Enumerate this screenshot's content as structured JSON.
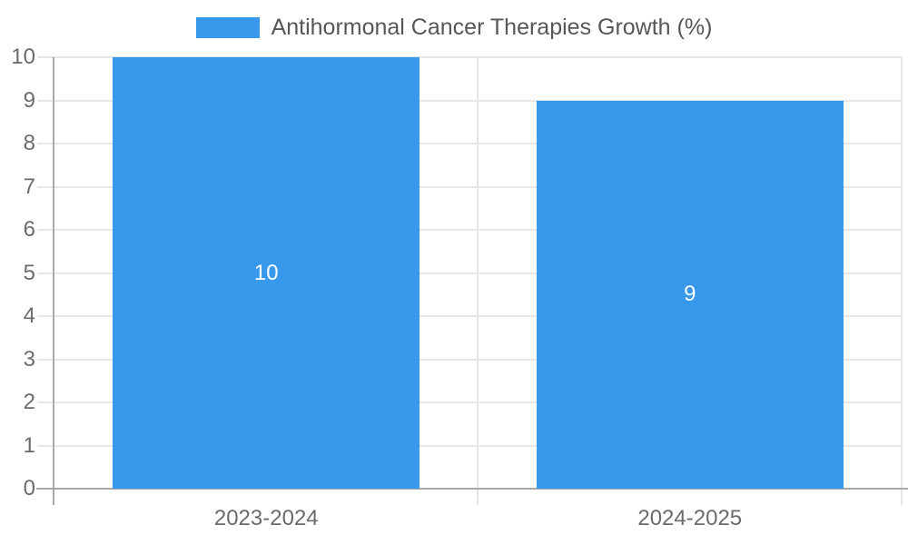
{
  "chart_data": {
    "type": "bar",
    "title": "Antihormonal Cancer Therapies Growth (%)",
    "legend": {
      "position": "top-center",
      "entries": [
        {
          "label": "Antihormonal Cancer Therapies Growth (%)",
          "color": "#3899EC"
        }
      ]
    },
    "categories": [
      "2023-2024",
      "2024-2025"
    ],
    "series": [
      {
        "name": "Antihormonal Cancer Therapies Growth (%)",
        "values": [
          10,
          9
        ],
        "color": "#3899EC"
      }
    ],
    "bar_value_labels": [
      "10",
      "9"
    ],
    "xlabel": "",
    "ylabel": "",
    "ylim": [
      0,
      10
    ],
    "ytick_step": 1,
    "yticks": [
      0,
      1,
      2,
      3,
      4,
      5,
      6,
      7,
      8,
      9,
      10
    ],
    "grid": true,
    "colors": {
      "bar": "#3899EC",
      "gridline": "#e6e6e6",
      "axis_line": "#a9a9a9",
      "tick_label_text": "#6b6b6b",
      "legend_text": "#575757",
      "value_label_text": "#ffffff",
      "background": "#ffffff"
    }
  }
}
